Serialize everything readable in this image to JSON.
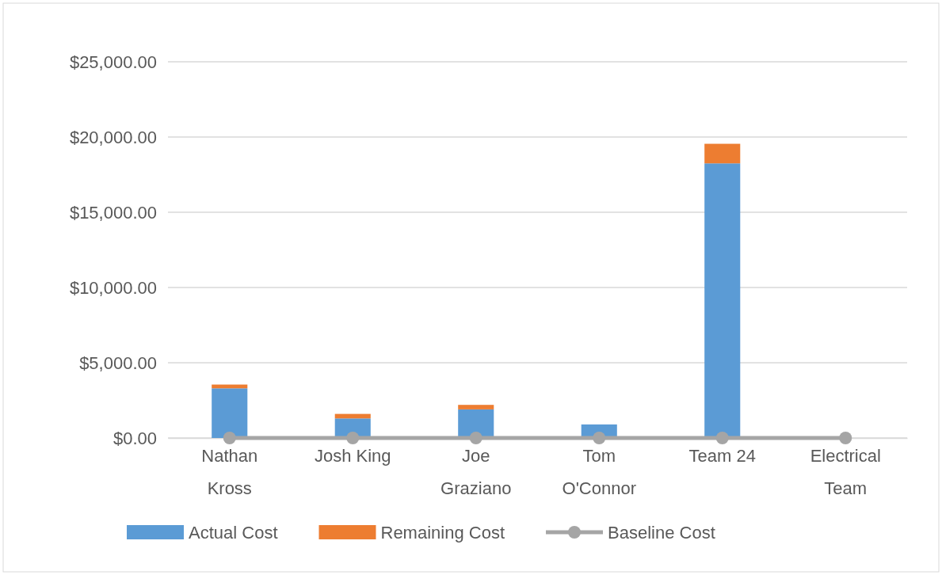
{
  "chart_data": {
    "type": "bar",
    "stacked": true,
    "categories": [
      "Nathan Kross",
      "Josh King",
      "Joe Graziano",
      "Tom O'Connor",
      "Team 24",
      "Electrical Team"
    ],
    "series": [
      {
        "name": "Actual Cost",
        "color": "#5b9bd5",
        "values": [
          3300,
          1300,
          1900,
          900,
          18250,
          0
        ]
      },
      {
        "name": "Remaining Cost",
        "color": "#ed7d31",
        "values": [
          250,
          300,
          300,
          0,
          1300,
          0
        ]
      },
      {
        "name": "Baseline Cost",
        "type": "line",
        "color": "#a5a5a5",
        "marker": "circle",
        "values": [
          0,
          0,
          0,
          0,
          0,
          0
        ]
      }
    ],
    "ylim": [
      0,
      25000
    ],
    "yticks": [
      {
        "value": 0,
        "label": "$0.00"
      },
      {
        "value": 5000,
        "label": "$5,000.00"
      },
      {
        "value": 10000,
        "label": "$10,000.00"
      },
      {
        "value": 15000,
        "label": "$15,000.00"
      },
      {
        "value": 20000,
        "label": "$20,000.00"
      },
      {
        "value": 25000,
        "label": "$25,000.00"
      }
    ],
    "grid": "y",
    "legend": "bottom"
  }
}
